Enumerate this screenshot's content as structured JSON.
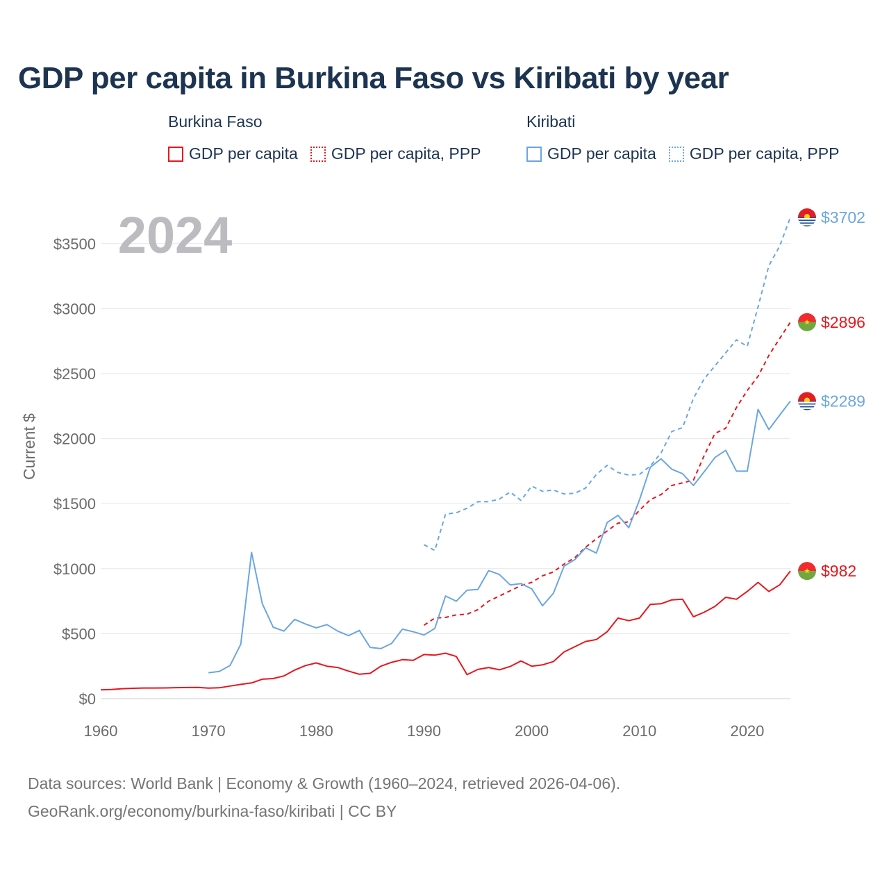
{
  "chart_data": {
    "type": "line",
    "title": "GDP per capita in Burkina Faso vs Kiribati by year",
    "year_label": "2024",
    "ylabel": "Current $",
    "xlim": [
      1960,
      2024
    ],
    "ylim": [
      0,
      3700
    ],
    "xticks": [
      1960,
      1970,
      1980,
      1990,
      2000,
      2010,
      2020
    ],
    "xtick_labels": [
      "1960",
      "1970",
      "1980",
      "1990",
      "2000",
      "2010",
      "2020"
    ],
    "yticks": [
      0,
      500,
      1000,
      1500,
      2000,
      2500,
      3000,
      3500
    ],
    "ytick_labels": [
      "$0",
      "$500",
      "$1000",
      "$1500",
      "$2000",
      "$2500",
      "$3000",
      "$3500"
    ],
    "legend": {
      "groups": [
        {
          "country": "Burkina Faso",
          "items": [
            {
              "label": "GDP per capita",
              "color": "#e8161d",
              "style": "solid"
            },
            {
              "label": "GDP per capita, PPP",
              "color": "#e8161d",
              "style": "dotted"
            }
          ]
        },
        {
          "country": "Kiribati",
          "items": [
            {
              "label": "GDP per capita",
              "color": "#6aa6e2",
              "style": "solid"
            },
            {
              "label": "GDP per capita, PPP",
              "color": "#6aa6e2",
              "style": "dotted"
            }
          ]
        }
      ]
    },
    "series": [
      {
        "name": "Burkina Faso GDP per capita",
        "color": "#e8161d",
        "dash": "none",
        "end_label": "$982",
        "flag": "burkina-faso",
        "x": [
          1960,
          1961,
          1962,
          1963,
          1964,
          1965,
          1966,
          1967,
          1968,
          1969,
          1970,
          1971,
          1972,
          1973,
          1974,
          1975,
          1976,
          1977,
          1978,
          1979,
          1980,
          1981,
          1982,
          1983,
          1984,
          1985,
          1986,
          1987,
          1988,
          1989,
          1990,
          1991,
          1992,
          1993,
          1994,
          1995,
          1996,
          1997,
          1998,
          1999,
          2000,
          2001,
          2002,
          2003,
          2004,
          2005,
          2006,
          2007,
          2008,
          2009,
          2010,
          2011,
          2012,
          2013,
          2014,
          2015,
          2016,
          2017,
          2018,
          2019,
          2020,
          2021,
          2022,
          2023,
          2024
        ],
        "values": [
          68,
          71,
          77,
          80,
          82,
          82,
          83,
          85,
          86,
          87,
          81,
          84,
          97,
          110,
          121,
          150,
          155,
          175,
          220,
          255,
          275,
          250,
          240,
          212,
          188,
          195,
          250,
          280,
          300,
          295,
          340,
          335,
          350,
          325,
          185,
          225,
          240,
          222,
          248,
          290,
          250,
          260,
          285,
          360,
          400,
          440,
          455,
          515,
          620,
          600,
          620,
          725,
          730,
          760,
          765,
          630,
          665,
          710,
          780,
          765,
          825,
          895,
          825,
          875,
          982
        ]
      },
      {
        "name": "Burkina Faso GDP per capita, PPP",
        "color": "#e8161d",
        "dash": "6,5",
        "end_label": "$2896",
        "flag": "burkina-faso",
        "x": [
          1990,
          1991,
          1992,
          1993,
          1994,
          1995,
          1996,
          1997,
          1998,
          1999,
          2000,
          2001,
          2002,
          2003,
          2004,
          2005,
          2006,
          2007,
          2008,
          2009,
          2010,
          2011,
          2012,
          2013,
          2014,
          2015,
          2016,
          2017,
          2018,
          2019,
          2020,
          2021,
          2022,
          2023,
          2024
        ],
        "values": [
          565,
          620,
          625,
          645,
          650,
          685,
          750,
          790,
          830,
          870,
          895,
          945,
          975,
          1035,
          1085,
          1165,
          1230,
          1290,
          1350,
          1360,
          1450,
          1530,
          1570,
          1640,
          1660,
          1680,
          1870,
          2040,
          2080,
          2240,
          2370,
          2480,
          2640,
          2770,
          2896
        ]
      },
      {
        "name": "Kiribati GDP per capita",
        "color": "#6aa6e2",
        "dash": "none",
        "end_label": "$2289",
        "flag": "kiribati",
        "x": [
          1970,
          1971,
          1972,
          1973,
          1974,
          1975,
          1976,
          1977,
          1978,
          1979,
          1980,
          1981,
          1982,
          1983,
          1984,
          1985,
          1986,
          1987,
          1988,
          1989,
          1990,
          1991,
          1992,
          1993,
          1994,
          1995,
          1996,
          1997,
          1998,
          1999,
          2000,
          2001,
          2002,
          2003,
          2004,
          2005,
          2006,
          2007,
          2008,
          2009,
          2010,
          2011,
          2012,
          2013,
          2014,
          2015,
          2016,
          2017,
          2018,
          2019,
          2020,
          2021,
          2022,
          2023,
          2024
        ],
        "values": [
          200,
          210,
          255,
          420,
          1125,
          730,
          550,
          520,
          610,
          575,
          545,
          570,
          520,
          485,
          525,
          395,
          385,
          425,
          535,
          515,
          490,
          540,
          790,
          750,
          835,
          840,
          985,
          955,
          875,
          885,
          845,
          715,
          810,
          1020,
          1070,
          1160,
          1120,
          1355,
          1410,
          1315,
          1530,
          1780,
          1845,
          1765,
          1730,
          1640,
          1745,
          1855,
          1910,
          1750,
          1750,
          2225,
          2070,
          2180,
          2289
        ]
      },
      {
        "name": "Kiribati GDP per capita, PPP",
        "color": "#6aa6e2",
        "dash": "6,5",
        "end_label": "$3702",
        "flag": "kiribati",
        "x": [
          1990,
          1991,
          1992,
          1993,
          1994,
          1995,
          1996,
          1997,
          1998,
          1999,
          2000,
          2001,
          2002,
          2003,
          2004,
          2005,
          2006,
          2007,
          2008,
          2009,
          2010,
          2011,
          2012,
          2013,
          2014,
          2015,
          2016,
          2017,
          2018,
          2019,
          2020,
          2021,
          2022,
          2023,
          2024
        ],
        "values": [
          1185,
          1140,
          1420,
          1430,
          1465,
          1515,
          1515,
          1535,
          1590,
          1525,
          1635,
          1595,
          1605,
          1575,
          1580,
          1620,
          1725,
          1795,
          1740,
          1720,
          1725,
          1790,
          1890,
          2055,
          2085,
          2310,
          2460,
          2560,
          2660,
          2760,
          2710,
          3015,
          3330,
          3480,
          3702
        ]
      }
    ]
  },
  "footer": {
    "line1": "Data sources: World Bank | Economy & Growth (1960–2024, retrieved 2026-04-06).",
    "line2": "GeoRank.org/economy/burkina-faso/kiribati | CC BY"
  }
}
